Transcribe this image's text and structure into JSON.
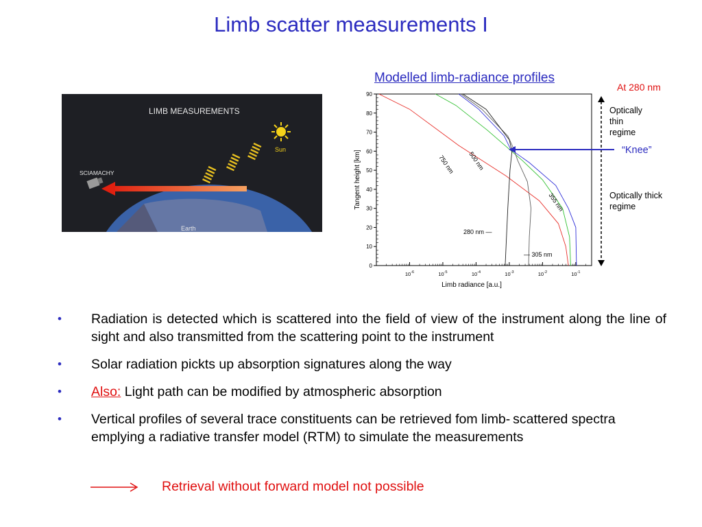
{
  "slide": {
    "title": "Limb scatter measurements I",
    "chart_title": "Modelled limb-radiance profiles",
    "at_label": "At 280 nm",
    "optically_thin": [
      "Optically",
      "thin",
      "regime"
    ],
    "knee_label": "“Knee”",
    "optically_thick": [
      "Optically thick",
      "regime"
    ]
  },
  "illustration": {
    "heading": "LIMB MEASUREMENTS",
    "instrument_label": "SCIAMACHY",
    "sun_label": "Sun",
    "earth_label": "Earth"
  },
  "chart_data": {
    "type": "line",
    "xlabel": "Limb radiance [a.u.]",
    "ylabel": "Tangent height [km]",
    "x_scale": "log",
    "xlim": [
      1e-07,
      0.3
    ],
    "ylim": [
      0,
      90
    ],
    "x_ticks": [
      {
        "base": "10",
        "exp": "-6",
        "value": 1e-06
      },
      {
        "base": "10",
        "exp": "-5",
        "value": 1e-05
      },
      {
        "base": "10",
        "exp": "-4",
        "value": 0.0001
      },
      {
        "base": "10",
        "exp": "-3",
        "value": 0.001
      },
      {
        "base": "10",
        "exp": "-2",
        "value": 0.01
      },
      {
        "base": "10",
        "exp": "-1",
        "value": 0.1
      }
    ],
    "y_ticks": [
      "0",
      "10",
      "20",
      "30",
      "40",
      "50",
      "60",
      "70",
      "80",
      "90"
    ],
    "series": [
      {
        "name": "750 nm",
        "color": "#e8302a",
        "points": [
          [
            1.2e-07,
            90
          ],
          [
            1e-06,
            82
          ],
          [
            3e-05,
            63
          ],
          [
            0.0008,
            47
          ],
          [
            0.008,
            34
          ],
          [
            0.03,
            22
          ],
          [
            0.05,
            10
          ],
          [
            0.06,
            0
          ]
        ]
      },
      {
        "name": "500 nm",
        "color": "#30c030",
        "points": [
          [
            6e-06,
            90
          ],
          [
            2.5e-05,
            84
          ],
          [
            0.00022,
            71
          ],
          [
            0.0025,
            55
          ],
          [
            0.01,
            45
          ],
          [
            0.04,
            30
          ],
          [
            0.065,
            15
          ],
          [
            0.07,
            0
          ]
        ]
      },
      {
        "name": "355 nm",
        "color": "#3030d8",
        "points": [
          [
            3e-05,
            90
          ],
          [
            0.00012,
            82
          ],
          [
            0.0007,
            68
          ],
          [
            0.0011,
            61
          ],
          [
            0.004,
            54
          ],
          [
            0.025,
            42
          ],
          [
            0.06,
            30
          ],
          [
            0.1,
            20
          ],
          [
            0.105,
            0
          ]
        ]
      },
      {
        "name": "305 nm",
        "color": "#606060",
        "points": [
          [
            3.5e-05,
            90
          ],
          [
            0.00015,
            82
          ],
          [
            0.0009,
            68
          ],
          [
            0.0013,
            62
          ],
          [
            0.0018,
            55
          ],
          [
            0.0035,
            44
          ],
          [
            0.0045,
            30
          ],
          [
            0.004,
            15
          ],
          [
            0.0038,
            0
          ]
        ]
      },
      {
        "name": "280 nm",
        "color": "#202020",
        "points": [
          [
            4e-05,
            90
          ],
          [
            0.0002,
            82
          ],
          [
            0.001,
            66
          ],
          [
            0.0012,
            60
          ],
          [
            0.00105,
            50
          ],
          [
            0.0009,
            30
          ],
          [
            0.00075,
            0
          ]
        ]
      }
    ],
    "curve_labels": [
      "750 nm",
      "500 nm",
      "355 nm",
      "280 nm —",
      "— 305 nm"
    ]
  },
  "bullets": [
    {
      "text": "Radiation is detected which is scattered into the field of view of the instrument along the line of sight and also transmitted from the scattering point to the instrument"
    },
    {
      "text": "Solar radiation pickts up absorption signatures along the way"
    },
    {
      "prefix": "Also:",
      "text": " Light path can be modified by atmospheric absorption"
    },
    {
      "text": "Vertical profiles of several trace constituents can be retrieved fom limb- scattered spectra emplying a radiative transfer model (RTM) to simulate the measurements"
    }
  ],
  "bullet_glyph": "•",
  "conclusion": "Retrieval without forward model not possible",
  "colors": {
    "title_blue": "#2b2bbf",
    "accent_red": "#e01010"
  }
}
